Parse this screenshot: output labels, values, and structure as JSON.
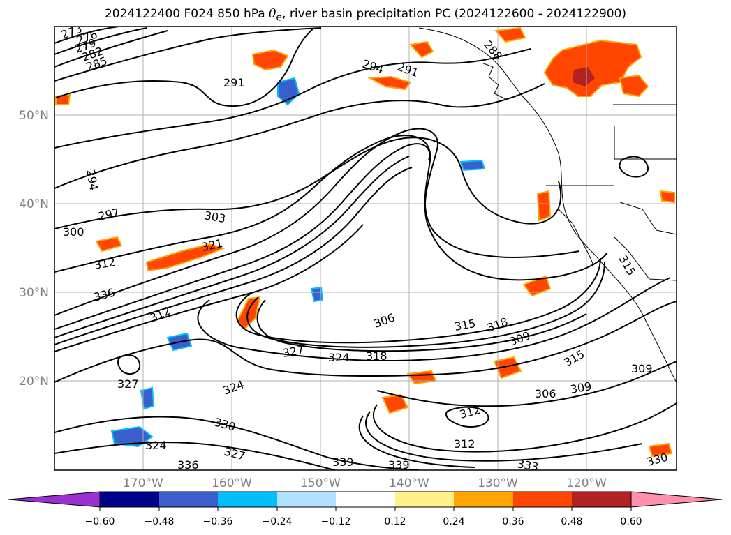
{
  "title": {
    "prefix": "2024122400 F024 850 hPa ",
    "theta": "θ",
    "sub": "e",
    "suffix": ", river basin precipitation PC (2024122600 - 2024122900)"
  },
  "map": {
    "lat_labels": [
      "50°N",
      "40°N",
      "30°N",
      "20°N"
    ],
    "lon_labels": [
      "170°W",
      "160°W",
      "150°W",
      "140°W",
      "130°W",
      "120°W"
    ],
    "contour_labels": [
      "273",
      "276",
      "279",
      "282",
      "285",
      "288",
      "291",
      "291",
      "294",
      "294",
      "297",
      "300",
      "303",
      "306",
      "306",
      "309",
      "309",
      "309",
      "312",
      "312",
      "312",
      "312",
      "315",
      "315",
      "315",
      "318",
      "318",
      "321",
      "324",
      "324",
      "324",
      "327",
      "327",
      "327",
      "330",
      "330",
      "333",
      "336",
      "336",
      "339",
      "339"
    ],
    "colors": {
      "contour": "#000000",
      "coast": "#000000",
      "grid": "#b0b0b0"
    }
  },
  "colorbar": {
    "ticks": [
      "−0.60",
      "−0.48",
      "−0.36",
      "−0.24",
      "−0.12",
      "0.12",
      "0.24",
      "0.36",
      "0.48",
      "0.60"
    ],
    "colors": [
      "#9b30d0",
      "#00008b",
      "#3a5fcd",
      "#00bfff",
      "#b0e2ff",
      "#ffffff",
      "#fff08a",
      "#ffa500",
      "#ff4500",
      "#b22222",
      "#ff8fab"
    ]
  }
}
